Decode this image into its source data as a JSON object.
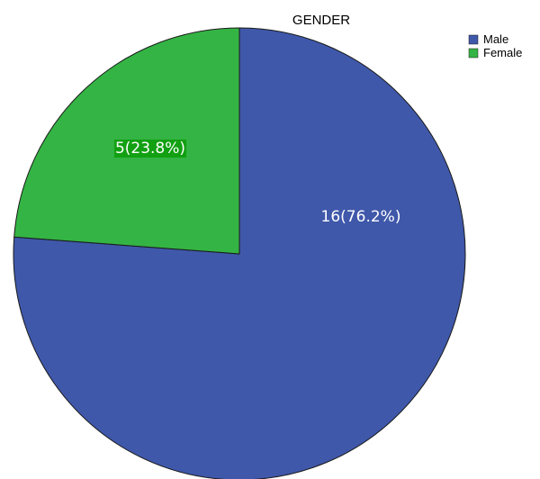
{
  "chart_data": {
    "type": "pie",
    "title": "GENDER",
    "slices": [
      {
        "name": "Male",
        "value": 16,
        "label": "16(76.2%)",
        "color": "#3F58AA",
        "label_bg": "#3F58AA"
      },
      {
        "name": "Female",
        "value": 5,
        "label": "5(23.8%)",
        "color": "#34B444",
        "label_bg": "#12A012"
      }
    ],
    "start_angle": "top",
    "direction": "clockwise",
    "legend": {
      "position": "top-right"
    }
  }
}
